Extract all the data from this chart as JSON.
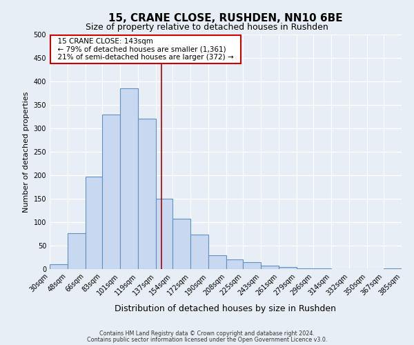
{
  "title": "15, CRANE CLOSE, RUSHDEN, NN10 6BE",
  "subtitle": "Size of property relative to detached houses in Rushden",
  "xlabel": "Distribution of detached houses by size in Rushden",
  "ylabel": "Number of detached properties",
  "bin_labels": [
    "30sqm",
    "48sqm",
    "66sqm",
    "83sqm",
    "101sqm",
    "119sqm",
    "137sqm",
    "154sqm",
    "172sqm",
    "190sqm",
    "208sqm",
    "225sqm",
    "243sqm",
    "261sqm",
    "279sqm",
    "296sqm",
    "314sqm",
    "332sqm",
    "350sqm",
    "367sqm",
    "385sqm"
  ],
  "bin_edges": [
    30,
    48,
    66,
    83,
    101,
    119,
    137,
    154,
    172,
    190,
    208,
    225,
    243,
    261,
    279,
    296,
    314,
    332,
    350,
    367,
    385
  ],
  "bar_heights": [
    10,
    77,
    197,
    330,
    385,
    320,
    150,
    108,
    73,
    30,
    20,
    15,
    8,
    4,
    2,
    1,
    0,
    0,
    0,
    2
  ],
  "bar_color": "#c8d8f0",
  "bar_edgecolor": "#6090c0",
  "vline_x": 143,
  "vline_color": "#aa0000",
  "annotation_title": "15 CRANE CLOSE: 143sqm",
  "annotation_line1": "← 79% of detached houses are smaller (1,361)",
  "annotation_line2": "21% of semi-detached houses are larger (372) →",
  "annotation_box_edgecolor": "#cc0000",
  "ylim": [
    0,
    500
  ],
  "yticks": [
    0,
    50,
    100,
    150,
    200,
    250,
    300,
    350,
    400,
    450,
    500
  ],
  "footnote1": "Contains HM Land Registry data © Crown copyright and database right 2024.",
  "footnote2": "Contains public sector information licensed under the Open Government Licence v3.0.",
  "background_color": "#e8eef5",
  "plot_background_color": "#e8eef5",
  "grid_color": "#ffffff",
  "title_fontsize": 11,
  "subtitle_fontsize": 9,
  "ylabel_fontsize": 8,
  "xlabel_fontsize": 9,
  "tick_fontsize": 7
}
